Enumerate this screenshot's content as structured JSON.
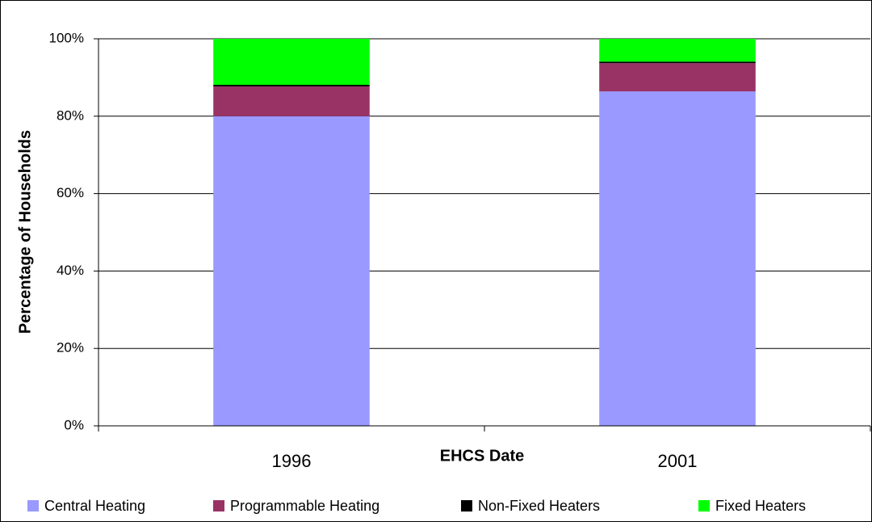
{
  "chart_data": {
    "type": "stacked_bar",
    "xlabel": "EHCS Date",
    "ylabel": "Percentage of Households",
    "categories": [
      "1996",
      "2001"
    ],
    "series": [
      {
        "name": "Central Heating",
        "color": "#9999ff",
        "values": [
          80,
          86.4
        ]
      },
      {
        "name": "Programmable Heating",
        "color": "#993366",
        "values": [
          7.7,
          7.3
        ]
      },
      {
        "name": "Non-Fixed Heaters",
        "color": "#000000",
        "values": [
          0.4,
          0.4
        ]
      },
      {
        "name": "Fixed Heaters",
        "color": "#00ff00",
        "values": [
          11.9,
          5.9
        ]
      }
    ],
    "ylim": [
      0,
      100
    ],
    "yticks": [
      {
        "value": 0,
        "label": "0%"
      },
      {
        "value": 20,
        "label": "20%"
      },
      {
        "value": 40,
        "label": "40%"
      },
      {
        "value": 60,
        "label": "60%"
      },
      {
        "value": 80,
        "label": "80%"
      },
      {
        "value": 100,
        "label": "100%"
      }
    ],
    "grid": true,
    "legend": "bottom"
  }
}
